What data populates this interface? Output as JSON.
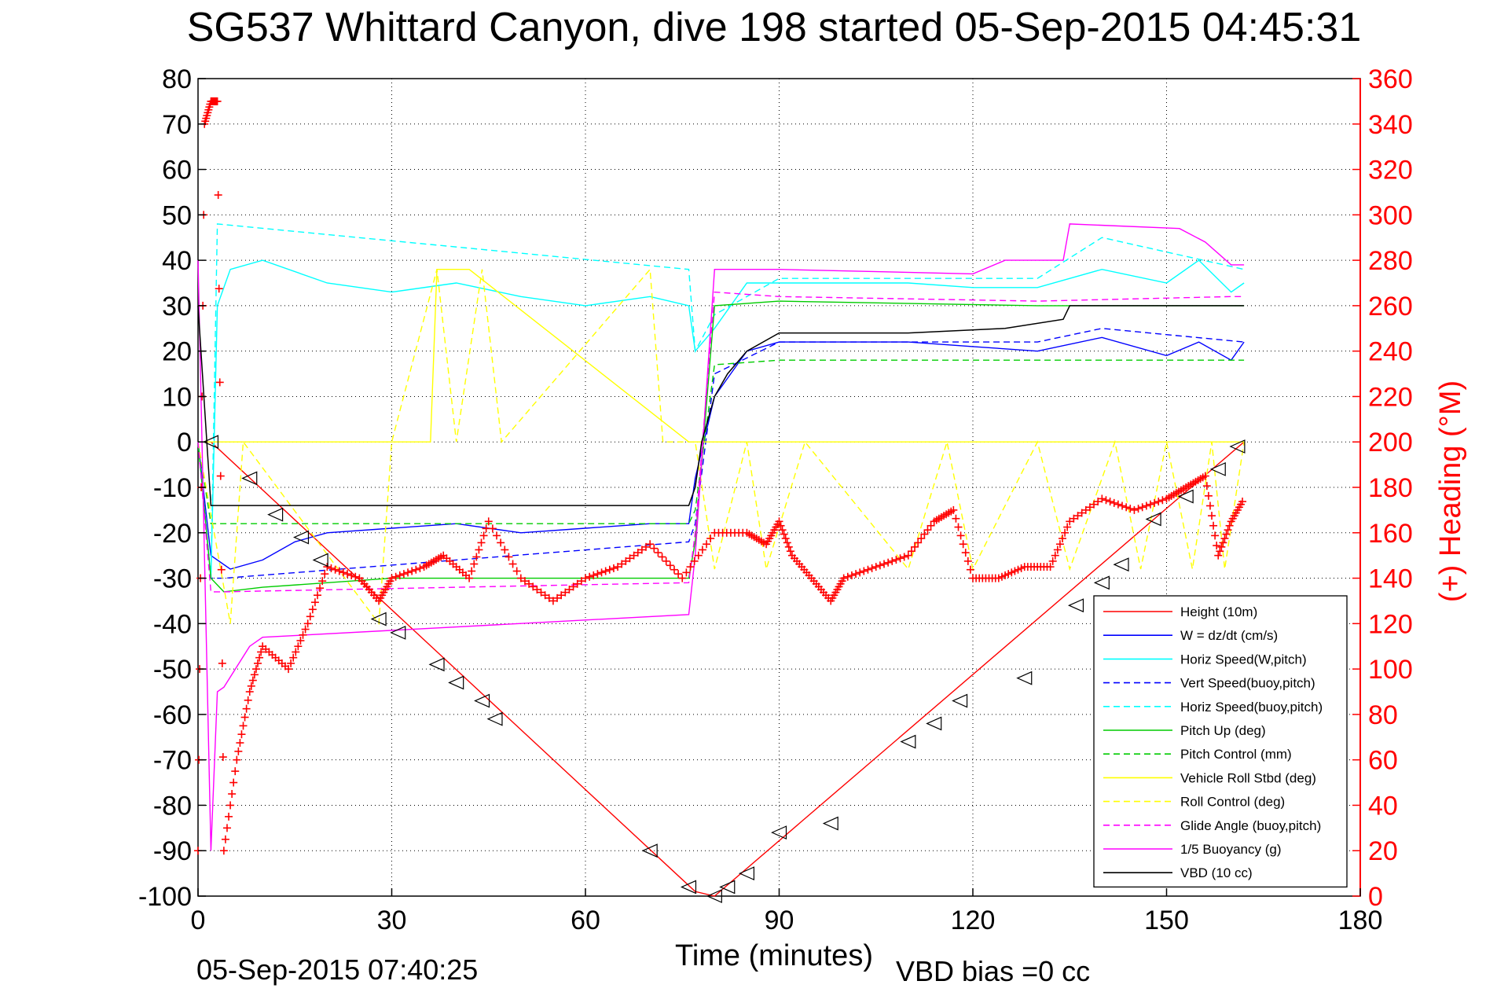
{
  "chart_data": {
    "type": "line",
    "title": "SG537 Whittard Canyon, dive 198 started 05-Sep-2015 04:45:31",
    "xlabel": "Time (minutes)",
    "ylabel": "",
    "y2label": "(+) Heading (°M)",
    "footer_left": "05-Sep-2015 07:40:25",
    "footer_right": "VBD bias =0 cc",
    "xlim": [
      0,
      180
    ],
    "ylim": [
      -100,
      80
    ],
    "y2lim": [
      0,
      360
    ],
    "xticks": [
      "0",
      "30",
      "60",
      "90",
      "120",
      "150",
      "180"
    ],
    "yticks": [
      "80",
      "70",
      "60",
      "50",
      "40",
      "30",
      "20",
      "10",
      "0",
      "-10",
      "-20",
      "-30",
      "-40",
      "-50",
      "-60",
      "-70",
      "-80",
      "-90",
      "-100"
    ],
    "y2ticks": [
      "360",
      "340",
      "320",
      "300",
      "280",
      "260",
      "240",
      "220",
      "200",
      "180",
      "160",
      "140",
      "120",
      "100",
      "80",
      "60",
      "40",
      "20",
      "0"
    ],
    "grid": true,
    "legend_position": "bottom-right",
    "colors": {
      "axis_right": "#ff0000",
      "axis_left": "#000000"
    },
    "series": [
      {
        "name": "Height (10m)",
        "color": "#ff0000",
        "dash": "solid",
        "x": [
          0,
          2,
          77,
          80,
          162
        ],
        "y": [
          0,
          0,
          -99,
          -100,
          0
        ]
      },
      {
        "name": "W = dz/dt (cm/s)",
        "color": "#0000ff",
        "dash": "solid",
        "x": [
          0,
          2,
          5,
          10,
          15,
          20,
          30,
          40,
          50,
          60,
          70,
          76,
          77,
          80,
          85,
          90,
          100,
          110,
          120,
          130,
          140,
          150,
          155,
          160,
          162
        ],
        "y": [
          0,
          -25,
          -28,
          -26,
          -22,
          -20,
          -19,
          -18,
          -20,
          -19,
          -18,
          -18,
          -8,
          10,
          20,
          22,
          22,
          22,
          21,
          20,
          23,
          19,
          22,
          18,
          22
        ]
      },
      {
        "name": "Horiz Speed(W,pitch)",
        "color": "#00ffff",
        "dash": "solid",
        "x": [
          0,
          2,
          3,
          5,
          10,
          20,
          30,
          40,
          50,
          60,
          70,
          76,
          77,
          80,
          85,
          90,
          100,
          110,
          120,
          130,
          140,
          150,
          155,
          160,
          162
        ],
        "y": [
          0,
          -30,
          30,
          38,
          40,
          35,
          33,
          35,
          32,
          30,
          32,
          30,
          20,
          25,
          35,
          35,
          35,
          35,
          34,
          34,
          38,
          35,
          40,
          33,
          35
        ]
      },
      {
        "name": "Vert Speed(buoy,pitch)",
        "color": "#0000ff",
        "dash": "dashed",
        "x": [
          0,
          2,
          4,
          76,
          77,
          80,
          90,
          130,
          140,
          162
        ],
        "y": [
          0,
          -30,
          -30,
          -22,
          -18,
          15,
          22,
          22,
          25,
          22
        ]
      },
      {
        "name": "Horiz Speed(buoy,pitch)",
        "color": "#00ffff",
        "dash": "dashed",
        "x": [
          0,
          2,
          3,
          76,
          77,
          80,
          90,
          130,
          140,
          162
        ],
        "y": [
          0,
          -30,
          48,
          38,
          20,
          28,
          36,
          36,
          45,
          38
        ]
      },
      {
        "name": "Pitch Up (deg)",
        "color": "#00cc00",
        "dash": "solid",
        "x": [
          0,
          2,
          4,
          10,
          30,
          76,
          77,
          80,
          90,
          130,
          160,
          162
        ],
        "y": [
          0,
          -30,
          -33,
          -32,
          -30,
          -30,
          -22,
          30,
          31,
          30,
          30,
          30
        ]
      },
      {
        "name": "Pitch Control (mm)",
        "color": "#00cc00",
        "dash": "dashed",
        "x": [
          0,
          2,
          4,
          76,
          77,
          80,
          90,
          130,
          160,
          162
        ],
        "y": [
          0,
          -18,
          -18,
          -18,
          -15,
          17,
          18,
          18,
          18,
          18
        ]
      },
      {
        "name": "Vehicle Roll Stbd (deg)",
        "color": "#ffff00",
        "dash": "solid",
        "x": [
          0,
          36,
          37,
          42,
          76,
          162
        ],
        "y": [
          0,
          0,
          38,
          38,
          0,
          0
        ]
      },
      {
        "name": "Roll Control (deg)",
        "color": "#ffff00",
        "dash": "dashed",
        "x": [
          0,
          5,
          7,
          28,
          30,
          37,
          40,
          44,
          47,
          70,
          72,
          77,
          80,
          85,
          88,
          94,
          110,
          116,
          120,
          130,
          135,
          142,
          146,
          150,
          154,
          157,
          159,
          162
        ],
        "y": [
          0,
          -40,
          0,
          -40,
          0,
          38,
          0,
          38,
          0,
          38,
          0,
          0,
          -28,
          0,
          -28,
          0,
          -28,
          0,
          -28,
          0,
          -28,
          0,
          -28,
          0,
          -28,
          0,
          -28,
          0
        ]
      },
      {
        "name": "Glide Angle (buoy,pitch)",
        "color": "#ff00ff",
        "dash": "dashed",
        "x": [
          0,
          2,
          4,
          76,
          77,
          80,
          90,
          130,
          160,
          162
        ],
        "y": [
          0,
          -33,
          -33,
          -31,
          -20,
          33,
          32,
          31,
          32,
          32
        ]
      },
      {
        "name": "1/5 Buoyancy (g)",
        "color": "#ff00ff",
        "dash": "solid",
        "x": [
          0,
          2,
          3,
          4,
          8,
          10,
          76,
          77,
          80,
          82,
          90,
          120,
          125,
          134,
          135,
          152,
          156,
          160,
          162
        ],
        "y": [
          40,
          -90,
          -55,
          -54,
          -45,
          -43,
          -38,
          -25,
          38,
          38,
          38,
          37,
          40,
          40,
          48,
          47,
          44,
          39,
          39
        ]
      },
      {
        "name": "VBD (10 cc)",
        "color": "#000000",
        "dash": "solid",
        "x": [
          0,
          2,
          76,
          77,
          78,
          80,
          82,
          85,
          90,
          110,
          125,
          134,
          135,
          162
        ],
        "y": [
          30,
          -14,
          -14,
          -10,
          0,
          10,
          15,
          20,
          24,
          24,
          25,
          27,
          30,
          30
        ]
      }
    ],
    "heading_series": {
      "name": "Heading",
      "axis": "right",
      "color": "#ff0000",
      "marker": "+",
      "x": [
        0,
        1,
        2,
        3,
        4,
        6,
        8,
        10,
        14,
        17,
        20,
        25,
        28,
        30,
        35,
        38,
        42,
        45,
        50,
        55,
        60,
        65,
        70,
        75,
        80,
        85,
        88,
        90,
        92,
        95,
        98,
        100,
        105,
        110,
        114,
        117,
        120,
        124,
        128,
        132,
        135,
        140,
        145,
        150,
        153,
        156,
        158,
        160,
        162
      ],
      "y": [
        20,
        340,
        350,
        350,
        20,
        60,
        90,
        110,
        100,
        120,
        145,
        140,
        130,
        140,
        145,
        150,
        140,
        165,
        140,
        130,
        140,
        145,
        155,
        140,
        160,
        160,
        155,
        165,
        150,
        140,
        130,
        140,
        145,
        150,
        165,
        170,
        140,
        140,
        145,
        145,
        165,
        175,
        170,
        175,
        180,
        185,
        150,
        165,
        175
      ]
    },
    "markers_series": {
      "color": "#000000",
      "marker": "triangle",
      "x": [
        2,
        8,
        12,
        16,
        19,
        28,
        31,
        37,
        40,
        44,
        46,
        70,
        76,
        80,
        82,
        85,
        90,
        98,
        110,
        114,
        118,
        128,
        136,
        140,
        143,
        148,
        153,
        158,
        161
      ],
      "y": [
        0,
        -8,
        -16,
        -21,
        -26,
        -39,
        -42,
        -49,
        -53,
        -57,
        -61,
        -90,
        -98,
        -100,
        -98,
        -95,
        -86,
        -84,
        -66,
        -62,
        -57,
        -52,
        -36,
        -31,
        -27,
        -17,
        -12,
        -6,
        -1
      ]
    }
  }
}
